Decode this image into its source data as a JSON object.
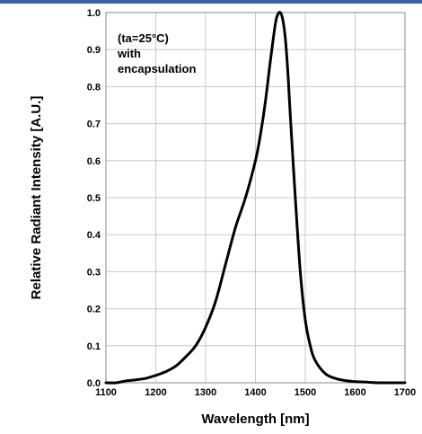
{
  "chart_data": {
    "type": "line",
    "title": "",
    "xlabel": "Wavelength [nm]",
    "ylabel": "Relative Radiant Intensity [A.U.]",
    "xlim": [
      1100,
      1700
    ],
    "ylim": [
      0.0,
      1.0
    ],
    "x_ticks": [
      1100,
      1200,
      1300,
      1400,
      1500,
      1600,
      1700
    ],
    "y_ticks": [
      "0.0",
      "0.1",
      "0.2",
      "0.3",
      "0.4",
      "0.5",
      "0.6",
      "0.7",
      "0.8",
      "0.9",
      "1.0"
    ],
    "grid": true,
    "annotation_lines": [
      "(ta=25°C)",
      "with",
      "encapsulation"
    ],
    "line_color": "#000000",
    "series": [
      {
        "x": [
          1100,
          1120,
          1140,
          1160,
          1180,
          1200,
          1220,
          1240,
          1260,
          1280,
          1300,
          1320,
          1340,
          1360,
          1380,
          1400,
          1410,
          1420,
          1430,
          1440,
          1445,
          1450,
          1455,
          1460,
          1465,
          1470,
          1480,
          1490,
          1500,
          1510,
          1520,
          1540,
          1560,
          1580,
          1600,
          1620,
          1650,
          1700
        ],
        "y": [
          0.0,
          0.0,
          0.005,
          0.008,
          0.012,
          0.02,
          0.03,
          0.045,
          0.07,
          0.1,
          0.15,
          0.22,
          0.32,
          0.42,
          0.5,
          0.6,
          0.67,
          0.76,
          0.87,
          0.97,
          0.995,
          1.0,
          0.98,
          0.93,
          0.84,
          0.72,
          0.5,
          0.3,
          0.17,
          0.1,
          0.06,
          0.025,
          0.012,
          0.006,
          0.003,
          0.002,
          0.0,
          0.0
        ]
      }
    ]
  }
}
